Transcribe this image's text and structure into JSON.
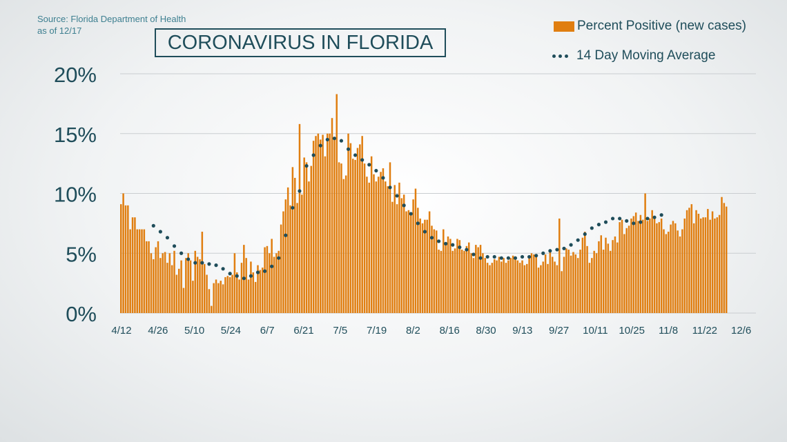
{
  "header": {
    "source_line1": "Source: Florida Department of Health",
    "source_line2": "as of 12/17",
    "title": "CORONAVIRUS IN FLORIDA"
  },
  "legend": {
    "bars_label": "Percent Positive (new cases)",
    "avg_label": "14 Day Moving Average"
  },
  "colors": {
    "bar": "#e07e10",
    "dots": "#1f4d5a",
    "text": "#1f4d5a",
    "grid": "#c9cdd0"
  },
  "chart_data": {
    "type": "bar",
    "title": "CORONAVIRUS IN FLORIDA",
    "xlabel": "",
    "ylabel": "",
    "ylim": [
      0,
      20
    ],
    "y_ticks": [
      0,
      5,
      10,
      15,
      20
    ],
    "y_tick_labels": [
      "0%",
      "5%",
      "10%",
      "15%",
      "20%"
    ],
    "grid": true,
    "legend_position": "top-right",
    "x_tick_labels": [
      "4/12",
      "4/26",
      "5/10",
      "5/24",
      "6/7",
      "6/21",
      "7/5",
      "7/19",
      "8/2",
      "8/16",
      "8/30",
      "9/13",
      "9/27",
      "10/11",
      "10/25",
      "11/8",
      "11/22",
      "12/6"
    ],
    "first_date": "4/10",
    "last_date": "12/17",
    "series": [
      {
        "name": "Percent Positive (new cases)",
        "type": "bar",
        "values": [
          9.1,
          10.0,
          9.0,
          9.0,
          7.0,
          8.0,
          8.0,
          7.0,
          7.0,
          7.0,
          7.0,
          6.0,
          6.0,
          5.0,
          4.5,
          5.5,
          6.0,
          4.6,
          5.0,
          5.1,
          4.2,
          5.0,
          4.0,
          5.2,
          3.2,
          3.7,
          4.4,
          2.1,
          4.6,
          5.0,
          4.4,
          2.7,
          5.2,
          4.7,
          4.5,
          6.8,
          4.1,
          3.2,
          2.0,
          0.6,
          2.5,
          2.8,
          2.5,
          2.7,
          2.4,
          3.0,
          3.1,
          3.0,
          3.2,
          5.0,
          3.4,
          2.8,
          4.2,
          5.7,
          4.6,
          2.8,
          4.3,
          3.4,
          2.6,
          4.0,
          3.6,
          3.8,
          5.5,
          5.6,
          5.0,
          6.2,
          4.7,
          5.0,
          5.2,
          7.4,
          8.5,
          9.5,
          10.5,
          9.0,
          12.2,
          11.3,
          9.2,
          15.8,
          9.9,
          13.0,
          12.6,
          11.0,
          12.3,
          14.4,
          14.8,
          15.0,
          14.5,
          14.9,
          13.1,
          15.0,
          15.0,
          16.3,
          14.6,
          18.3,
          12.6,
          12.5,
          11.2,
          11.5,
          15.0,
          14.2,
          12.9,
          12.8,
          13.8,
          14.1,
          14.8,
          12.5,
          11.4,
          10.9,
          13.1,
          11.6,
          11.0,
          11.4,
          11.8,
          12.1,
          11.0,
          10.6,
          12.6,
          9.3,
          10.7,
          9.1,
          10.9,
          9.6,
          9.9,
          8.5,
          8.6,
          8.4,
          9.5,
          10.4,
          8.8,
          7.9,
          7.5,
          7.8,
          7.8,
          8.5,
          7.3,
          7.0,
          6.9,
          5.3,
          5.2,
          7.0,
          5.7,
          6.4,
          6.2,
          5.2,
          5.4,
          6.2,
          6.1,
          5.3,
          5.2,
          5.6,
          5.9,
          5.0,
          4.6,
          5.7,
          5.5,
          5.7,
          5.0,
          4.6,
          4.2,
          4.0,
          4.2,
          4.5,
          4.4,
          4.7,
          4.3,
          4.6,
          4.2,
          4.4,
          4.6,
          4.8,
          4.6,
          4.4,
          4.2,
          4.4,
          4.0,
          4.1,
          4.7,
          5.0,
          4.9,
          4.7,
          3.8,
          4.0,
          4.3,
          4.9,
          4.1,
          5.3,
          4.7,
          4.3,
          4.0,
          7.9,
          3.5,
          4.7,
          5.4,
          5.3,
          4.8,
          5.1,
          4.9,
          4.6,
          5.3,
          6.3,
          6.8,
          5.6,
          4.2,
          4.6,
          5.2,
          5.0,
          6.0,
          6.5,
          5.3,
          6.3,
          5.8,
          5.2,
          6.1,
          6.4,
          5.9,
          7.6,
          7.8,
          6.6,
          7.1,
          7.3,
          7.9,
          8.1,
          8.4,
          7.7,
          8.2,
          7.8,
          10.0,
          7.7,
          7.9,
          8.6,
          8.0,
          7.5,
          7.6,
          7.9,
          7.0,
          6.6,
          6.8,
          7.4,
          7.7,
          7.5,
          6.9,
          6.4,
          7.0,
          7.9,
          8.6,
          8.8,
          9.1,
          7.5,
          8.6,
          8.3,
          7.9,
          8.0,
          8.0,
          8.7,
          7.8,
          8.5,
          7.9,
          8.0,
          8.2,
          9.7,
          9.2,
          8.9
        ]
      },
      {
        "name": "14 Day Moving Average",
        "type": "dotted-line",
        "x_start_index": 14,
        "step": 3,
        "values": [
          7.3,
          6.8,
          6.3,
          5.6,
          5.0,
          4.5,
          4.2,
          4.2,
          4.1,
          4.0,
          3.7,
          3.3,
          3.1,
          2.9,
          3.1,
          3.4,
          3.5,
          3.9,
          4.6,
          6.5,
          8.8,
          10.2,
          12.3,
          13.2,
          14.0,
          14.5,
          14.6,
          14.4,
          13.7,
          13.2,
          12.8,
          12.4,
          11.9,
          11.3,
          10.5,
          9.8,
          9.0,
          8.3,
          7.5,
          6.8,
          6.3,
          6.0,
          5.8,
          5.7,
          5.5,
          5.3,
          4.9,
          4.6,
          4.7,
          4.7,
          4.6,
          4.6,
          4.6,
          4.7,
          4.7,
          4.8,
          5.0,
          5.2,
          5.3,
          5.4,
          5.7,
          6.1,
          6.6,
          7.1,
          7.4,
          7.6,
          7.9,
          7.9,
          7.7,
          7.5,
          7.6,
          7.9,
          8.0,
          8.2
        ]
      }
    ]
  }
}
